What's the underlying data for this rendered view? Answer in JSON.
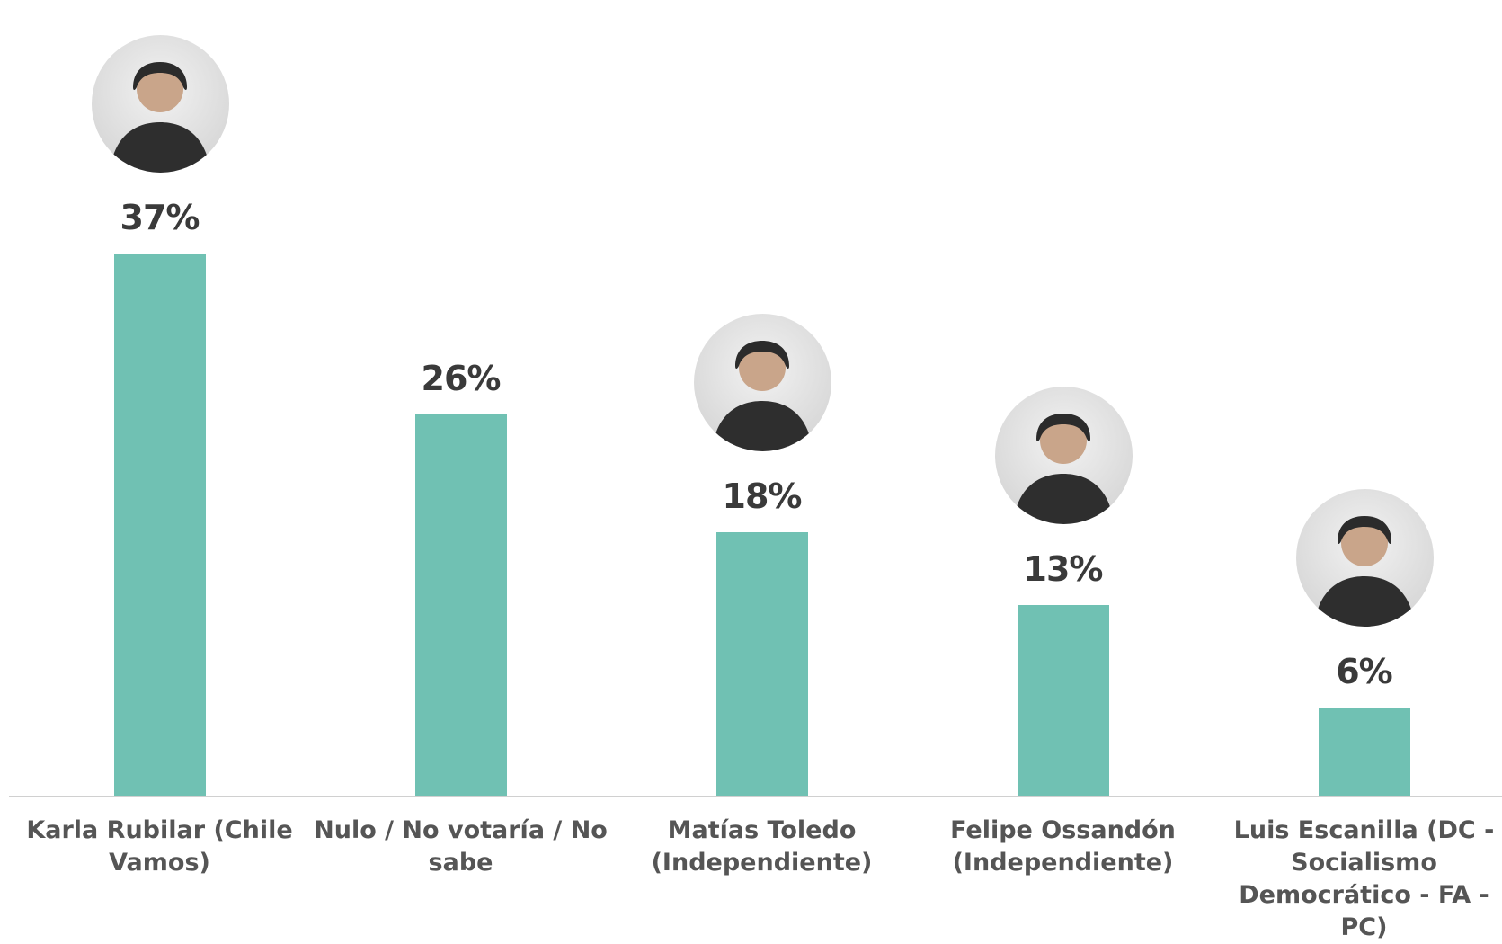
{
  "chart_data": {
    "type": "bar",
    "categories": [
      "Karla Rubilar (Chile Vamos)",
      "Nulo / No votaría / No sabe",
      "Matías Toledo (Independiente)",
      "Felipe Ossandón (Independiente)",
      "Luis Escanilla (DC - Socialismo Democrático - FA - PC)"
    ],
    "values": [
      37,
      26,
      18,
      13,
      6
    ],
    "value_labels": [
      "37%",
      "26%",
      "18%",
      "13%",
      "6%"
    ],
    "color": "#70c1b3"
  }
}
